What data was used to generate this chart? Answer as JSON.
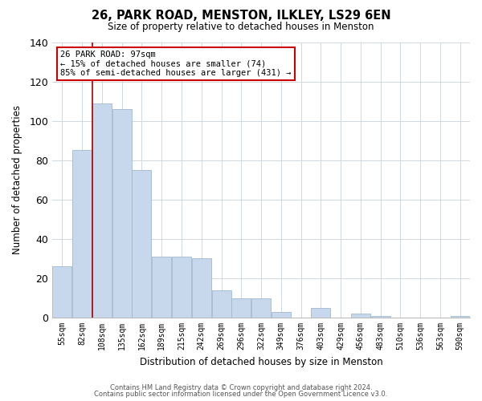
{
  "title": "26, PARK ROAD, MENSTON, ILKLEY, LS29 6EN",
  "subtitle": "Size of property relative to detached houses in Menston",
  "xlabel": "Distribution of detached houses by size in Menston",
  "ylabel": "Number of detached properties",
  "categories": [
    "55sqm",
    "82sqm",
    "108sqm",
    "135sqm",
    "162sqm",
    "189sqm",
    "215sqm",
    "242sqm",
    "269sqm",
    "296sqm",
    "322sqm",
    "349sqm",
    "376sqm",
    "403sqm",
    "429sqm",
    "456sqm",
    "483sqm",
    "510sqm",
    "536sqm",
    "563sqm",
    "590sqm"
  ],
  "values": [
    26,
    85,
    109,
    106,
    75,
    31,
    31,
    30,
    14,
    10,
    10,
    3,
    0,
    5,
    0,
    2,
    1,
    0,
    0,
    0,
    1
  ],
  "bar_color": "#c8d8ec",
  "bar_edge_color": "#a0b8d0",
  "ylim": [
    0,
    140
  ],
  "yticks": [
    0,
    20,
    40,
    60,
    80,
    100,
    120,
    140
  ],
  "marker_color": "#aa0000",
  "annotation_title": "26 PARK ROAD: 97sqm",
  "annotation_line1": "← 15% of detached houses are smaller (74)",
  "annotation_line2": "85% of semi-detached houses are larger (431) →",
  "annotation_box_color": "#ffffff",
  "annotation_box_edge": "#cc0000",
  "footer1": "Contains HM Land Registry data © Crown copyright and database right 2024.",
  "footer2": "Contains public sector information licensed under the Open Government Licence v3.0.",
  "background_color": "#ffffff",
  "grid_color": "#d0d8e0"
}
